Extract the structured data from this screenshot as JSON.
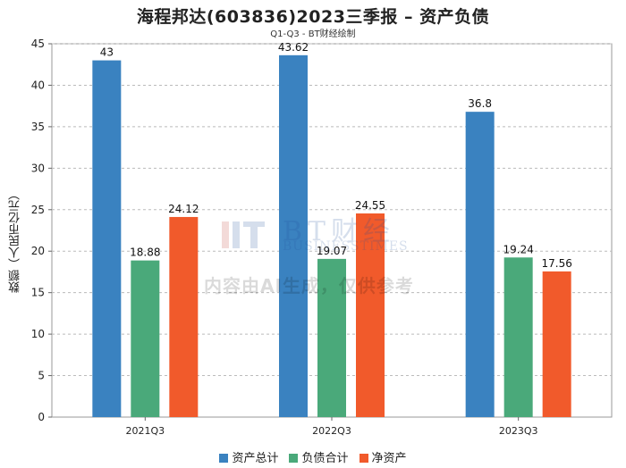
{
  "title": "海程邦达(603836)2023三季报 – 资产负债",
  "subtitle": "Q1-Q3 - BT财经绘制",
  "watermark": {
    "brand": "BT财经",
    "brand_sub": "BUSINESSTIMES",
    "notice": "内容由AI生成，仅供参考"
  },
  "chart_data": {
    "type": "bar",
    "title": "海程邦达(603836)2023三季报 – 资产负债",
    "ylabel": "数额（人民币亿元）",
    "xlabel": "",
    "categories": [
      "2021Q3",
      "2022Q3",
      "2023Q3"
    ],
    "series": [
      {
        "name": "资产总计",
        "color": "#3a82c0",
        "values": [
          43,
          43.62,
          36.8
        ]
      },
      {
        "name": "负债合计",
        "color": "#4aa97a",
        "values": [
          18.88,
          19.07,
          19.24
        ]
      },
      {
        "name": "净资产",
        "color": "#f15a2b",
        "values": [
          24.12,
          24.55,
          17.56
        ]
      }
    ],
    "value_labels": [
      [
        "43",
        "43.62",
        "36.8"
      ],
      [
        "18.88",
        "19.07",
        "19.24"
      ],
      [
        "24.12",
        "24.55",
        "17.56"
      ]
    ],
    "ylim": [
      0,
      45
    ],
    "yticks": [
      0,
      5,
      10,
      15,
      20,
      25,
      30,
      35,
      40,
      45
    ],
    "grid": true,
    "legend": "bottom"
  }
}
